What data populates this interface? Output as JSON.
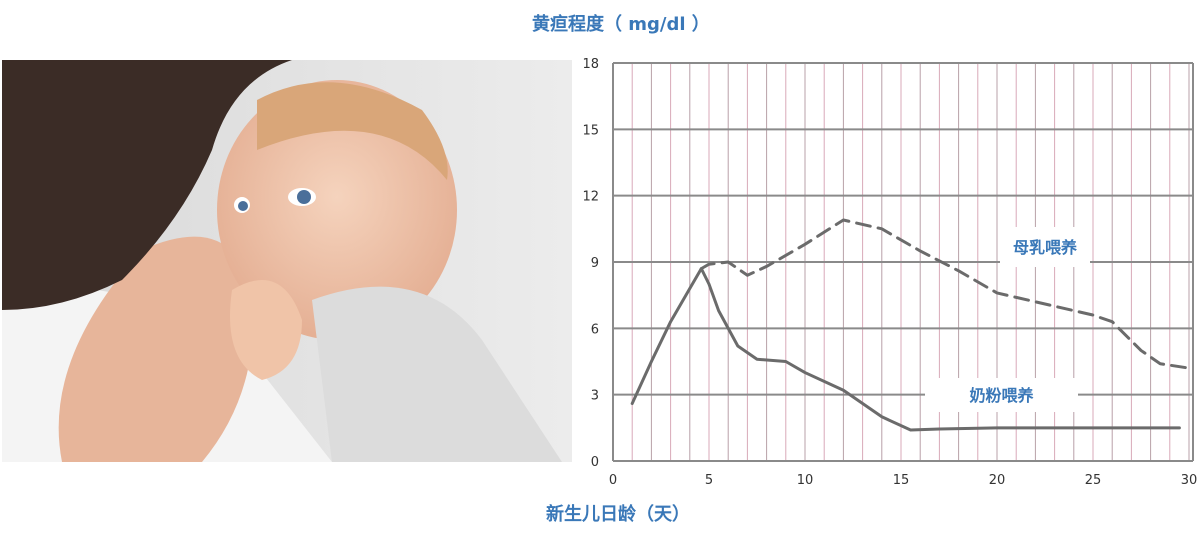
{
  "chart_data": {
    "type": "line",
    "ylabel": "黄疸程度（ mg/dl ）",
    "xlabel": "新生儿日龄（天）",
    "xlim": [
      0,
      30
    ],
    "ylim": [
      0,
      18
    ],
    "xticks": [
      0,
      5,
      10,
      15,
      20,
      25,
      30
    ],
    "yticks": [
      0,
      3,
      6,
      9,
      12,
      15,
      18
    ],
    "grid": true,
    "series": [
      {
        "name": "母乳喂养",
        "style": "dashed",
        "color": "#6b6b6b",
        "x": [
          4.6,
          5,
          6,
          7,
          8,
          10,
          12,
          14,
          16,
          18,
          20,
          22,
          25,
          26,
          27.5,
          28.5,
          30
        ],
        "y": [
          8.7,
          8.9,
          9.0,
          8.4,
          8.8,
          9.8,
          10.9,
          10.5,
          9.5,
          8.6,
          7.6,
          7.2,
          6.6,
          6.3,
          5.0,
          4.4,
          4.2
        ]
      },
      {
        "name": "奶粉喂养",
        "style": "solid",
        "color": "#6b6b6b",
        "x": [
          1,
          2,
          3,
          4,
          4.6,
          5,
          5.5,
          6.5,
          7.5,
          9,
          10,
          12,
          14,
          15.5,
          17,
          20,
          29.5
        ],
        "y": [
          2.6,
          4.5,
          6.3,
          7.8,
          8.7,
          8.0,
          6.8,
          5.2,
          4.6,
          4.5,
          4.0,
          3.2,
          2.0,
          1.4,
          1.45,
          1.5,
          1.5
        ]
      }
    ]
  },
  "colors": {
    "title": "#3a78b8",
    "grid_major": "#8a8a8a",
    "grid_minor": "#d9a9b8"
  }
}
